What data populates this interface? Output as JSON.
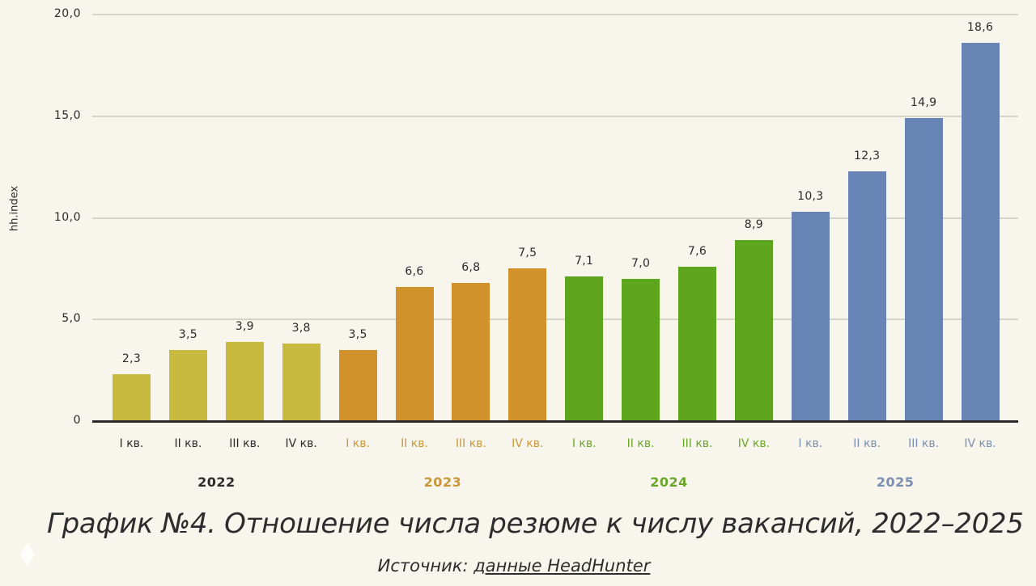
{
  "chart_data": {
    "type": "bar",
    "title": "График №4. Отношение числа резюме к числу вакансий, 2022–2025",
    "source": "Источник: данные HeadHunter",
    "xlabel": "",
    "ylabel": "hh.index",
    "ylim": [
      0,
      20
    ],
    "yticks": [
      "0",
      "5,0",
      "10,0",
      "15,0",
      "20,0"
    ],
    "grid": true,
    "legend": null,
    "groups": [
      {
        "year": "2022",
        "color": "#c8b93f",
        "label_color": "#2b2b2b"
      },
      {
        "year": "2023",
        "color": "#d1922c",
        "label_color": "#c9973a"
      },
      {
        "year": "2024",
        "color": "#5ea51e",
        "label_color": "#6aa52a"
      },
      {
        "year": "2025",
        "color": "#6784b4",
        "label_color": "#7a8fb0"
      }
    ],
    "categories": [
      "I кв. 2022",
      "II кв. 2022",
      "III кв. 2022",
      "IV кв. 2022",
      "I кв. 2023",
      "II кв. 2023",
      "III кв. 2023",
      "IV кв. 2023",
      "I кв. 2024",
      "II кв. 2024",
      "III кв. 2024",
      "IV кв. 2024",
      "I кв. 2025",
      "II кв. 2025",
      "III кв. 2025",
      "IV кв. 2025"
    ],
    "values": [
      2.3,
      3.5,
      3.9,
      3.8,
      3.5,
      6.6,
      6.8,
      7.5,
      7.1,
      7.0,
      7.6,
      8.9,
      10.3,
      12.3,
      14.9,
      18.6
    ],
    "value_labels": [
      "2,3",
      "3,5",
      "3,9",
      "3,8",
      "3,5",
      "6,6",
      "6,8",
      "7,5",
      "7,1",
      "7,0",
      "7,6",
      "8,9",
      "10,3",
      "12,3",
      "14,9",
      "18,6"
    ],
    "quarter_labels": [
      "I кв.",
      "II кв.",
      "III кв.",
      "IV кв."
    ]
  },
  "caption": "График №4. Отношение числа резюме к числу вакансий, 2022–2025",
  "source": {
    "prefix": "Источник: ",
    "link_text": "данные HeadHunter"
  }
}
